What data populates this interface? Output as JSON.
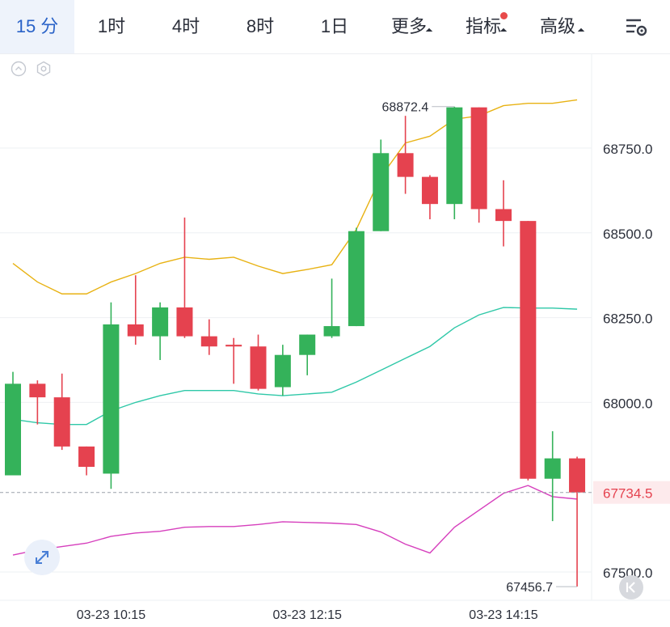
{
  "toolbar": {
    "tabs": [
      {
        "label": "15 分",
        "active": true
      },
      {
        "label": "1时"
      },
      {
        "label": "4时"
      },
      {
        "label": "8时"
      },
      {
        "label": "1日"
      },
      {
        "label": "更多",
        "dropdown": true
      },
      {
        "label": "指标",
        "dropdown": true,
        "badge": true
      },
      {
        "label": "高级",
        "dropdown": true
      }
    ],
    "settings_icon": "chart-settings-icon"
  },
  "colors": {
    "up": "#34b25a",
    "down": "#e5424f",
    "ma_yellow": "#e8b213",
    "ma_teal": "#2fc8a8",
    "ma_magenta": "#d63fbd",
    "current_price": "#e5424f",
    "active_tab": "#2a63c8"
  },
  "chart_data": {
    "type": "candlestick",
    "ylim": [
      67430,
      68960
    ],
    "y_ticks": [
      "68750.0",
      "68500.0",
      "68250.0",
      "68000.0",
      "67500.0"
    ],
    "x_ticks": [
      "03-23 10:15",
      "03-23 12:15",
      "03-23 14:15"
    ],
    "current_price": "67734.5",
    "high_label": "68872.4",
    "low_label": "67456.7",
    "candles": [
      {
        "o": 67785,
        "h": 68090,
        "l": 67785,
        "c": 68055
      },
      {
        "o": 68055,
        "h": 68065,
        "l": 67935,
        "c": 68015
      },
      {
        "o": 68015,
        "h": 68085,
        "l": 67860,
        "c": 67870
      },
      {
        "o": 67870,
        "h": 67870,
        "l": 67785,
        "c": 67810
      },
      {
        "o": 67790,
        "h": 68295,
        "l": 67745,
        "c": 68230
      },
      {
        "o": 68230,
        "h": 68375,
        "l": 68170,
        "c": 68195
      },
      {
        "o": 68195,
        "h": 68295,
        "l": 68125,
        "c": 68280
      },
      {
        "o": 68280,
        "h": 68545,
        "l": 68190,
        "c": 68195
      },
      {
        "o": 68195,
        "h": 68245,
        "l": 68140,
        "c": 68165
      },
      {
        "o": 68170,
        "h": 68190,
        "l": 68055,
        "c": 68165
      },
      {
        "o": 68165,
        "h": 68200,
        "l": 68035,
        "c": 68040
      },
      {
        "o": 68045,
        "h": 68170,
        "l": 68020,
        "c": 68140
      },
      {
        "o": 68140,
        "h": 68200,
        "l": 68080,
        "c": 68200
      },
      {
        "o": 68195,
        "h": 68365,
        "l": 68190,
        "c": 68225
      },
      {
        "o": 68225,
        "h": 68515,
        "l": 68225,
        "c": 68505
      },
      {
        "o": 68505,
        "h": 68775,
        "l": 68505,
        "c": 68735
      },
      {
        "o": 68735,
        "h": 68845,
        "l": 68615,
        "c": 68665
      },
      {
        "o": 68665,
        "h": 68670,
        "l": 68540,
        "c": 68585
      },
      {
        "o": 68585,
        "h": 68872,
        "l": 68540,
        "c": 68870
      },
      {
        "o": 68870,
        "h": 68870,
        "l": 68530,
        "c": 68570
      },
      {
        "o": 68570,
        "h": 68655,
        "l": 68460,
        "c": 68535
      },
      {
        "o": 68535,
        "h": 68535,
        "l": 67770,
        "c": 67775
      },
      {
        "o": 67775,
        "h": 67915,
        "l": 67650,
        "c": 67835
      },
      {
        "o": 67835,
        "h": 67840,
        "l": 67457,
        "c": 67734.5
      }
    ],
    "series": [
      {
        "color_key": "ma_yellow",
        "values": [
          68410,
          68355,
          68320,
          68320,
          68355,
          68380,
          68410,
          68428,
          68422,
          68428,
          68402,
          68380,
          68392,
          68406,
          68510,
          68665,
          68765,
          68785,
          68835,
          68845,
          68875,
          68882,
          68882,
          68892
        ]
      },
      {
        "color_key": "ma_teal",
        "values": [
          67950,
          67940,
          67935,
          67935,
          67975,
          68000,
          68020,
          68035,
          68035,
          68035,
          68025,
          68020,
          68025,
          68030,
          68060,
          68095,
          68130,
          68165,
          68220,
          68258,
          68280,
          68278,
          68278,
          68275
        ]
      },
      {
        "color_key": "ma_magenta",
        "values": [
          67550,
          67565,
          67575,
          67585,
          67605,
          67615,
          67620,
          67632,
          67634,
          67634,
          67640,
          67648,
          67646,
          67644,
          67640,
          67618,
          67582,
          67556,
          67632,
          67682,
          67732,
          67755,
          67722,
          67715
        ]
      }
    ]
  }
}
